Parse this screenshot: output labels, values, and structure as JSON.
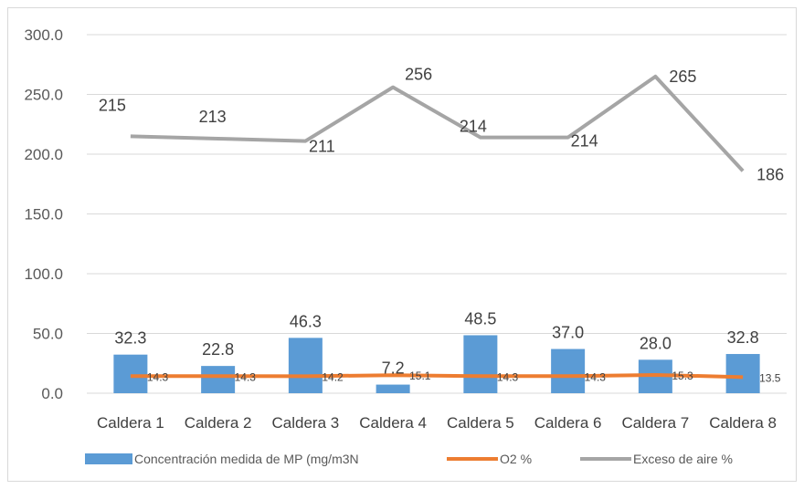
{
  "chart_data": {
    "type": "bar",
    "categories": [
      "Caldera 1",
      "Caldera 2",
      "Caldera 3",
      "Caldera 4",
      "Caldera 5",
      "Caldera 6",
      "Caldera 7",
      "Caldera 8"
    ],
    "ylim": [
      0,
      300
    ],
    "yticks": [
      "0.0",
      "50.0",
      "100.0",
      "150.0",
      "200.0",
      "250.0",
      "300.0"
    ],
    "grid": true,
    "legend_position": "bottom",
    "series": [
      {
        "name": "Concentración medida de MP (mg/m3N",
        "type": "bar",
        "color": "#5b9bd5",
        "values": [
          32.3,
          22.8,
          46.3,
          7.2,
          48.5,
          37.0,
          28.0,
          32.8
        ],
        "labels": [
          "32.3",
          "22.8",
          "46.3",
          "7.2",
          "48.5",
          "37.0",
          "28.0",
          "32.8"
        ]
      },
      {
        "name": "O2 %",
        "type": "line",
        "color": "#ed7d31",
        "values": [
          14.3,
          14.3,
          14.2,
          15.1,
          14.3,
          14.3,
          15.3,
          13.5
        ],
        "labels": [
          "14.3",
          "14.3",
          "14.2",
          "15.1",
          "14.3",
          "14.3",
          "15.3",
          "13.5"
        ]
      },
      {
        "name": "Exceso de aire %",
        "type": "line",
        "color": "#a5a5a5",
        "values": [
          215,
          213,
          211,
          256,
          214,
          214,
          265,
          186
        ],
        "labels": [
          "215",
          "213",
          "211",
          "256",
          "214",
          "214",
          "265",
          "186"
        ]
      }
    ]
  }
}
